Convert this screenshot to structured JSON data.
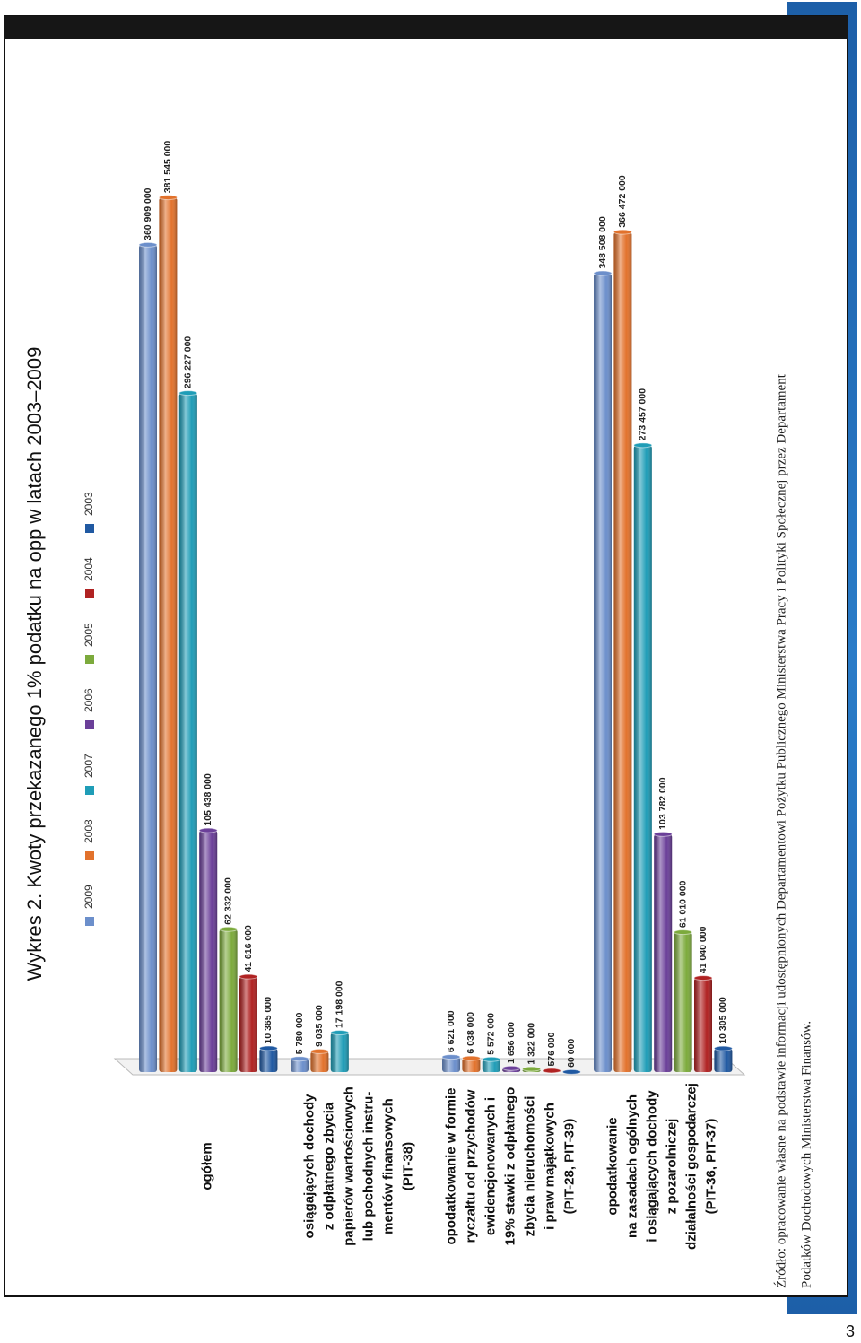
{
  "chart_data": {
    "type": "bar",
    "title": "Wykres 2. Kwoty przekazanego 1% podatku na opp w latach 2003–2009",
    "categories": [
      [
        "ogółem"
      ],
      [
        "osiągających dochody",
        "z odpłatnego zbycia",
        "papierów wartościowych",
        "lub pochodnych instru-",
        "mentów finansowych",
        "(PIT-38)"
      ],
      [
        "opodatkowanie w formie",
        "ryczałtu od przychodów",
        "ewidencjonowanych  i",
        "19% stawki z odpłatnego",
        "zbycia nieruchomości",
        "i praw majątkowych",
        "(PIT-28, PIT-39)"
      ],
      [
        "opodatkowanie",
        "na zasadach ogólnych",
        "i osiągających dochody",
        "z pozarolniczej",
        "działalności gospodarczej",
        "(PIT-36, PIT-37)"
      ]
    ],
    "series": [
      {
        "name": "2009",
        "color": "#6c8fcb",
        "values": [
          360909000,
          5780000,
          6621000,
          348508000
        ],
        "value_labels": [
          "360 909 000",
          "5 780 000",
          "6 621 000",
          "348 508 000"
        ]
      },
      {
        "name": "2008",
        "color": "#e2722c",
        "values": [
          381545000,
          9035000,
          6038000,
          366472000
        ],
        "value_labels": [
          "381 545 000",
          "9 035 000",
          "6 038 000",
          "366 472 000"
        ]
      },
      {
        "name": "2007",
        "color": "#1f9db7",
        "values": [
          296227000,
          17198000,
          5572000,
          273457000
        ],
        "value_labels": [
          "296 227 000",
          "17 198 000",
          "5 572 000",
          "273 457 000"
        ]
      },
      {
        "name": "2006",
        "color": "#6b3f99",
        "values": [
          105438000,
          null,
          1656000,
          103782000
        ],
        "value_labels": [
          "105 438 000",
          null,
          "1 656 000",
          "103 782 000"
        ]
      },
      {
        "name": "2005",
        "color": "#7caa3c",
        "values": [
          62332000,
          null,
          1322000,
          61010000
        ],
        "value_labels": [
          "62 332 000",
          null,
          "1 322 000",
          "61 010 000"
        ]
      },
      {
        "name": "2004",
        "color": "#b02222",
        "values": [
          41616000,
          null,
          576000,
          41040000
        ],
        "value_labels": [
          "41 616 000",
          null,
          "576 000",
          "41 040 000"
        ]
      },
      {
        "name": "2003",
        "color": "#2059a2",
        "values": [
          10365000,
          null,
          60000,
          10305000
        ],
        "value_labels": [
          "10 365 000",
          null,
          "60 000",
          "10 305 000"
        ]
      }
    ],
    "ylim": [
      0,
      400000000
    ],
    "source": [
      "Źródło: opracowanie własne na podstawie informacji udostępnionych Departamentowi Pożytku Publicznego Ministerstwa Pracy i Polityki Społecznej przez Departament",
      "Podatków Dochodowych Ministerstwa Finansów."
    ]
  },
  "page_number": "3"
}
